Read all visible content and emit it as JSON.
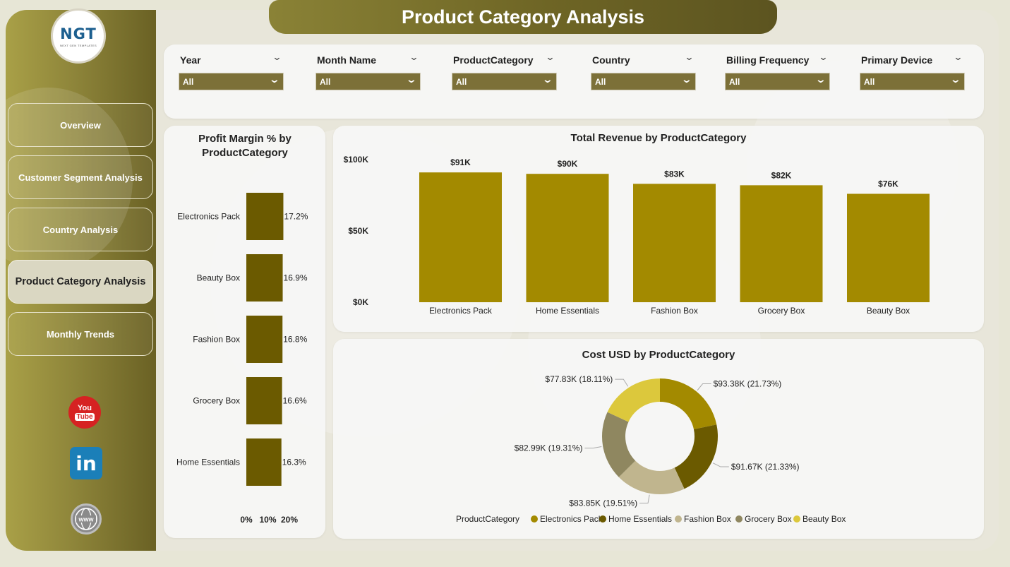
{
  "title": "Product Category Analysis",
  "logo": {
    "mark_main": "NGT",
    "sub": "NEXT GEN TEMPLATES"
  },
  "nav": [
    {
      "label": "Overview"
    },
    {
      "label": "Customer Segment Analysis"
    },
    {
      "label": "Country Analysis"
    },
    {
      "label": "Product Category Analysis",
      "active": true
    },
    {
      "label": "Monthly Trends"
    }
  ],
  "social": {
    "youtube_you": "You",
    "youtube_tube": "Tube",
    "linkedin": "in",
    "web": "www"
  },
  "filters": [
    {
      "label": "Year",
      "value": "All"
    },
    {
      "label": "Month Name",
      "value": "All"
    },
    {
      "label": "ProductCategory",
      "value": "All"
    },
    {
      "label": "Country",
      "value": "All"
    },
    {
      "label": "Billing Frequency",
      "value": "All"
    },
    {
      "label": "Primary Device",
      "value": "All"
    }
  ],
  "colors": {
    "bar_margin": "#6b5a00",
    "bar_revenue": "#a38a00",
    "sidebar": "#8e853a"
  },
  "chart_data": [
    {
      "type": "bar",
      "orientation": "horizontal",
      "title": "Profit Margin % by ProductCategory",
      "categories": [
        "Electronics Pack",
        "Beauty Box",
        "Fashion Box",
        "Grocery Box",
        "Home Essentials"
      ],
      "values": [
        17.2,
        16.9,
        16.8,
        16.6,
        16.3
      ],
      "value_labels": [
        "17.2%",
        "16.9%",
        "16.8%",
        "16.6%",
        "16.3%"
      ],
      "x_ticks": [
        "0%",
        "10%",
        "20%"
      ],
      "xlim": [
        0,
        20
      ]
    },
    {
      "type": "bar",
      "title": "Total Revenue by ProductCategory",
      "categories": [
        "Electronics Pack",
        "Home Essentials",
        "Fashion Box",
        "Grocery Box",
        "Beauty Box"
      ],
      "values": [
        91,
        90,
        83,
        82,
        76
      ],
      "value_labels": [
        "$91K",
        "$90K",
        "$83K",
        "$82K",
        "$76K"
      ],
      "y_ticks": [
        "$0K",
        "$50K",
        "$100K"
      ],
      "ylim": [
        0,
        100
      ]
    },
    {
      "type": "pie",
      "donut": true,
      "title": "Cost USD by ProductCategory",
      "legend_title": "ProductCategory",
      "legend_position": "bottom",
      "slices": [
        {
          "name": "Electronics Pack",
          "value": 93.38,
          "label": "$93.38K (21.73%)",
          "color": "#a38a00"
        },
        {
          "name": "Home Essentials",
          "value": 91.67,
          "label": "$91.67K (21.33%)",
          "color": "#6b5a00"
        },
        {
          "name": "Fashion Box",
          "value": 83.85,
          "label": "$83.85K (19.51%)",
          "color": "#c0b58e"
        },
        {
          "name": "Grocery Box",
          "value": 82.99,
          "label": "$82.99K (19.31%)",
          "color": "#8f8760"
        },
        {
          "name": "Beauty Box",
          "value": 77.83,
          "label": "$77.83K (18.11%)",
          "color": "#dcc83c"
        }
      ]
    }
  ]
}
